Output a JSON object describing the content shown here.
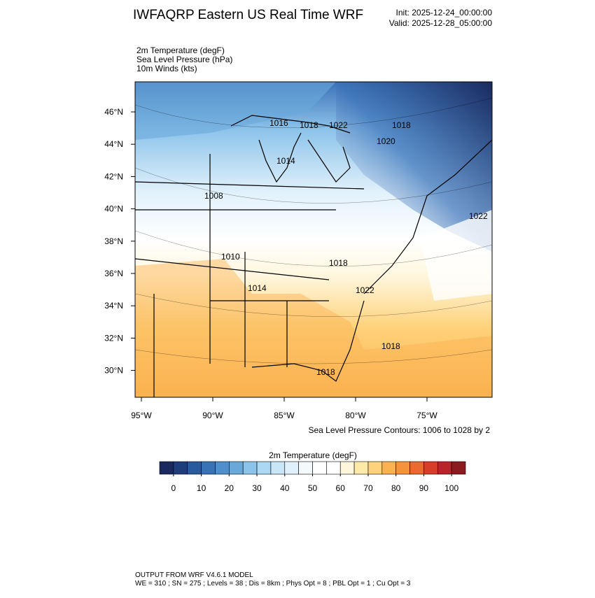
{
  "header": {
    "title": "IWFAQRP Eastern US Real Time WRF",
    "init": "Init: 2025-12-24_00:00:00",
    "valid": "Valid: 2025-12-28_05:00:00"
  },
  "fields": [
    "2m Temperature   (degF)",
    "Sea Level Pressure   (hPa)",
    "10m Winds   (kts)"
  ],
  "map": {
    "lat_labels": [
      "46°N",
      "44°N",
      "42°N",
      "40°N",
      "38°N",
      "36°N",
      "34°N",
      "32°N",
      "30°N"
    ],
    "lon_labels": [
      "95°W",
      "90°W",
      "85°W",
      "80°W",
      "75°W"
    ],
    "contour_labels": [
      "1016",
      "1018",
      "1022",
      "1018",
      "1020",
      "1014",
      "1008",
      "1022",
      "1010",
      "1018",
      "1014",
      "1022",
      "1018",
      "1018"
    ],
    "contour_note": "Sea Level Pressure Contours: 1006 to 1028 by 2"
  },
  "colorbar": {
    "title": "2m Temperature  (degF)",
    "lim": [
      -5,
      105
    ],
    "colors": [
      "#1b2a5e",
      "#1f3d7a",
      "#2a5a9e",
      "#3a72b8",
      "#4f8fcc",
      "#6aa8da",
      "#8cc3ea",
      "#acd8f4",
      "#c9e6f8",
      "#e1f1fb",
      "#f4f9fd",
      "#ffffff",
      "#ffffff",
      "#fff6dc",
      "#feeaa8",
      "#fed27a",
      "#fbb24f",
      "#f6923a",
      "#ea6a30",
      "#d63e2a",
      "#b9232a",
      "#8c1a1e"
    ],
    "ticks": [
      0,
      10,
      20,
      30,
      40,
      50,
      60,
      70,
      80,
      90,
      100
    ]
  },
  "footer": {
    "line1": "OUTPUT FROM WRF V4.6.1 MODEL",
    "line2": "WE = 310 ; SN = 275 ; Levels = 38 ; Dis = 8km ; Phys Opt = 8 ; PBL Opt = 1 ; Cu Opt = 3"
  }
}
